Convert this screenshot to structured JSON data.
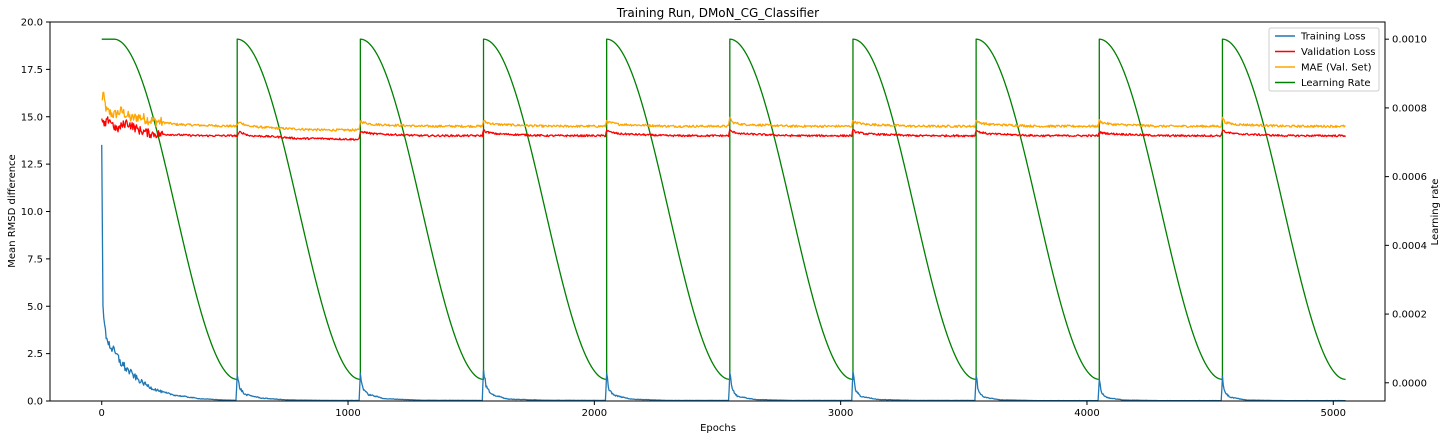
{
  "chart_data": {
    "type": "line",
    "title": "Training Run, DMoN_CG_Classifier",
    "xlabel": "Epochs",
    "ylabel": "Mean RMSD difference",
    "y2label": "Learning rate",
    "xlim": [
      -210,
      5210
    ],
    "ylim": [
      0,
      20
    ],
    "y2lim": [
      -5.3e-05,
      0.00105
    ],
    "x_ticks": [
      0,
      1000,
      2000,
      3000,
      4000,
      5000
    ],
    "x_tick_labels": [
      "0",
      "1000",
      "2000",
      "3000",
      "4000",
      "5000"
    ],
    "y_ticks": [
      0,
      2.5,
      5,
      7.5,
      10,
      12.5,
      15,
      17.5,
      20
    ],
    "y_tick_labels": [
      "0.0",
      "2.5",
      "5.0",
      "7.5",
      "10.0",
      "12.5",
      "15.0",
      "17.5",
      "20.0"
    ],
    "y2_ticks": [
      0,
      0.0002,
      0.0004,
      0.0006,
      0.0008,
      0.001
    ],
    "y2_tick_labels": [
      "0.0000",
      "0.0002",
      "0.0004",
      "0.0006",
      "0.0008",
      "0.0010"
    ],
    "legend_position": "top-right",
    "grid": false,
    "series": [
      {
        "name": "Training Loss",
        "axis": "left",
        "color": "#1f77b4",
        "x": [
          0,
          5,
          15,
          30,
          50,
          80,
          100,
          150,
          200,
          250,
          300,
          400,
          500,
          545,
          550,
          560,
          580,
          650,
          750,
          900,
          1045,
          1050,
          1060,
          1080,
          1150,
          1300,
          1545,
          1550,
          1560,
          1580,
          1650,
          1800,
          2045,
          2050,
          2060,
          2080,
          2150,
          2300,
          2545,
          2550,
          2560,
          2580,
          2650,
          2800,
          3045,
          3050,
          3060,
          3080,
          3150,
          3300,
          3545,
          3550,
          3560,
          3580,
          3650,
          3800,
          4045,
          4050,
          4060,
          4080,
          4150,
          4300,
          4545,
          4550,
          4560,
          4580,
          4650,
          4800,
          5050
        ],
        "y": [
          13.7,
          4.8,
          3.6,
          3.0,
          2.6,
          2.0,
          1.7,
          1.1,
          0.7,
          0.45,
          0.3,
          0.12,
          0.05,
          0.04,
          1.3,
          0.7,
          0.35,
          0.15,
          0.06,
          0.03,
          0.03,
          1.4,
          0.7,
          0.35,
          0.12,
          0.04,
          0.03,
          1.7,
          0.8,
          0.35,
          0.1,
          0.04,
          0.03,
          1.35,
          0.6,
          0.3,
          0.1,
          0.03,
          0.03,
          1.5,
          0.6,
          0.25,
          0.08,
          0.03,
          0.03,
          1.65,
          0.6,
          0.25,
          0.08,
          0.03,
          0.03,
          1.3,
          0.5,
          0.2,
          0.06,
          0.02,
          0.02,
          1.1,
          0.4,
          0.18,
          0.05,
          0.02,
          0.02,
          1.2,
          0.45,
          0.2,
          0.05,
          0.02,
          0.02
        ]
      },
      {
        "name": "Validation Loss",
        "axis": "left",
        "color": "#ff0000",
        "x": [
          0,
          10,
          30,
          60,
          100,
          150,
          200,
          300,
          400,
          545,
          550,
          560,
          600,
          700,
          800,
          900,
          1045,
          1050,
          1060,
          1100,
          1300,
          1545,
          1550,
          1560,
          1600,
          1800,
          2045,
          2050,
          2060,
          2100,
          2300,
          2545,
          2550,
          2560,
          2600,
          2800,
          3045,
          3050,
          3060,
          3100,
          3300,
          3545,
          3550,
          3560,
          3600,
          3800,
          4045,
          4050,
          4060,
          4100,
          4300,
          4545,
          4550,
          4560,
          4600,
          4800,
          5050
        ],
        "y": [
          14.8,
          14.5,
          14.9,
          14.3,
          14.7,
          14.3,
          14.1,
          14.05,
          14.0,
          14.0,
          13.95,
          14.2,
          14.0,
          13.95,
          13.85,
          13.85,
          13.8,
          14.2,
          14.2,
          14.1,
          14.0,
          14.0,
          14.3,
          14.2,
          14.1,
          14.0,
          14.0,
          14.3,
          14.2,
          14.1,
          14.0,
          14.0,
          14.3,
          14.2,
          14.1,
          14.0,
          14.0,
          14.3,
          14.2,
          14.1,
          14.0,
          14.0,
          14.3,
          14.2,
          14.1,
          14.0,
          14.0,
          14.2,
          14.15,
          14.1,
          14.0,
          14.0,
          14.3,
          14.2,
          14.1,
          14.0,
          14.0
        ]
      },
      {
        "name": "MAE (Val. Set)",
        "axis": "left",
        "color": "#ffa500",
        "x": [
          0,
          5,
          20,
          50,
          80,
          120,
          150,
          200,
          250,
          300,
          400,
          545,
          550,
          560,
          600,
          700,
          800,
          900,
          1045,
          1050,
          1060,
          1100,
          1300,
          1545,
          1550,
          1560,
          1600,
          1800,
          2045,
          2050,
          2060,
          2100,
          2300,
          2545,
          2550,
          2560,
          2600,
          2800,
          3045,
          3050,
          3060,
          3100,
          3300,
          3545,
          3550,
          3560,
          3600,
          3800,
          4045,
          4050,
          4060,
          4100,
          4300,
          4545,
          4550,
          4560,
          4600,
          4800,
          5050
        ],
        "y": [
          15.8,
          16.2,
          15.3,
          15.1,
          15.3,
          14.9,
          15.0,
          14.8,
          14.7,
          14.6,
          14.55,
          14.5,
          14.6,
          14.7,
          14.5,
          14.4,
          14.35,
          14.3,
          14.3,
          14.8,
          14.7,
          14.6,
          14.5,
          14.5,
          14.8,
          14.7,
          14.6,
          14.5,
          14.5,
          14.8,
          14.7,
          14.6,
          14.5,
          14.5,
          15.0,
          14.7,
          14.6,
          14.5,
          14.5,
          14.8,
          14.7,
          14.6,
          14.5,
          14.5,
          14.8,
          14.7,
          14.6,
          14.5,
          14.5,
          14.8,
          14.7,
          14.6,
          14.5,
          14.5,
          15.0,
          14.7,
          14.6,
          14.5,
          14.5
        ]
      },
      {
        "name": "Learning Rate",
        "axis": "right",
        "color": "#008000",
        "schedule": {
          "kind": "cosine-annealing-warm-restarts",
          "max": 0.001,
          "min": 1e-05,
          "hold_start": 50,
          "cycle_starts": [
            0,
            550,
            1050,
            1550,
            2050,
            2550,
            3050,
            3550,
            4050,
            4550
          ],
          "end": 5050
        }
      }
    ]
  }
}
